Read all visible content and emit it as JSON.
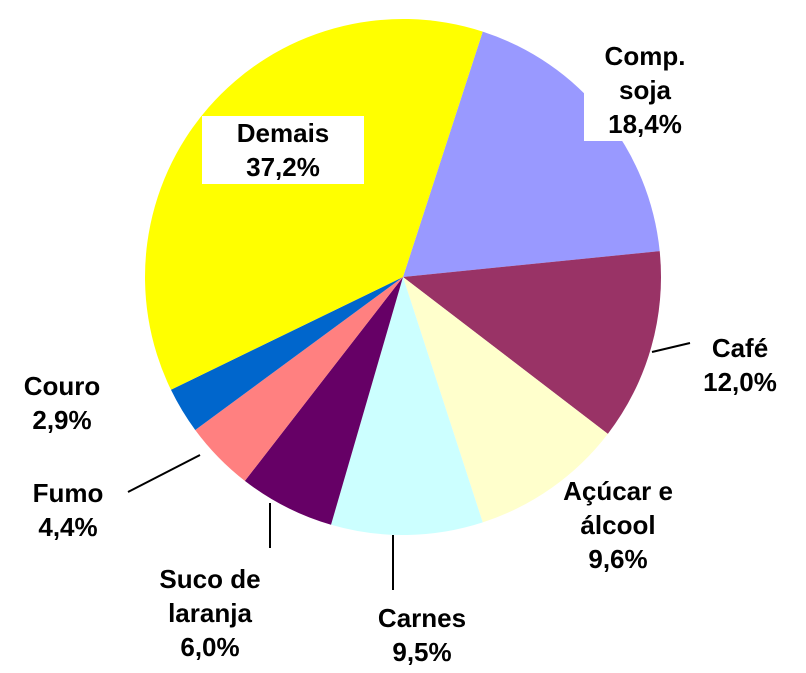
{
  "chart_data": {
    "type": "pie",
    "categories": [
      "Comp. soja",
      "Café",
      "Açúcar e álcool",
      "Carnes",
      "Suco de laranja",
      "Fumo",
      "Couro",
      "Demais"
    ],
    "values": [
      18.4,
      12.0,
      9.6,
      9.5,
      6.0,
      4.4,
      2.9,
      37.2
    ],
    "value_labels": [
      "18,4%",
      "12,0%",
      "9,6%",
      "9,5%",
      "6,0%",
      "4,4%",
      "2,9%",
      "37,2%"
    ],
    "colors": [
      "#9999ff",
      "#993366",
      "#ffffcc",
      "#ccffff",
      "#660066",
      "#ff8080",
      "#0066cc",
      "#ffff00"
    ]
  }
}
